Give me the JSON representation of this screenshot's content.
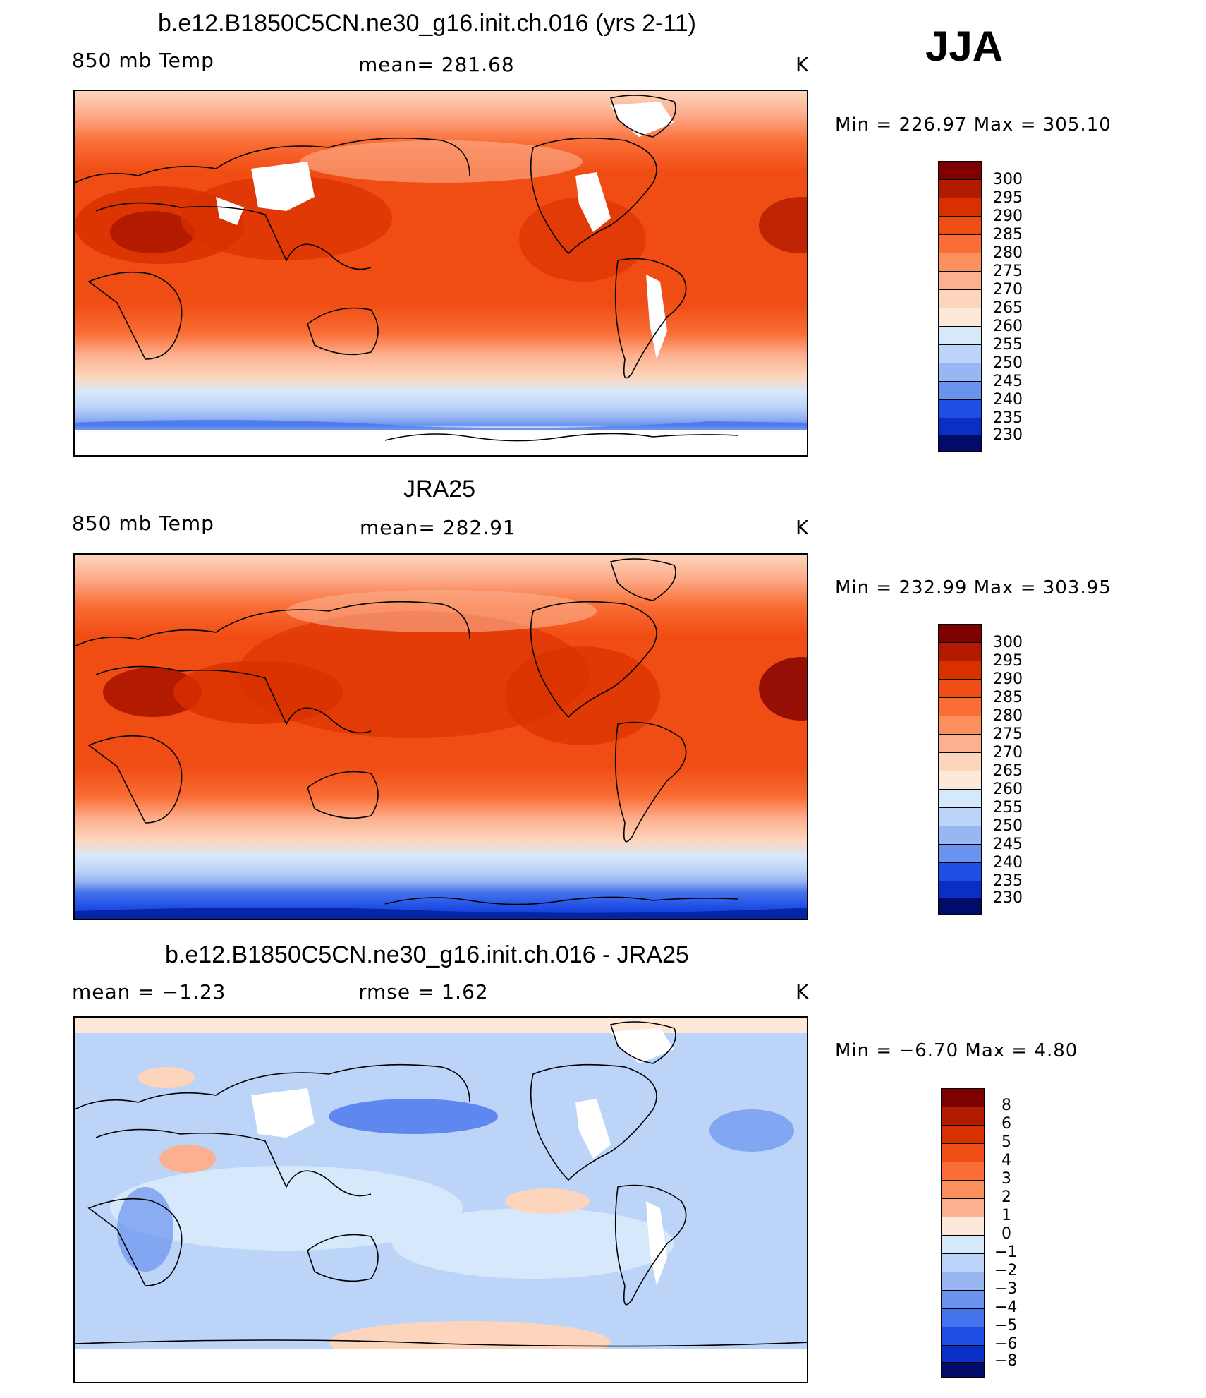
{
  "season": "JJA",
  "panels": [
    {
      "title": "b.e12.B1850C5CN.ne30_g16.init.ch.016 (yrs 2-11)",
      "left_label": "850 mb Temp",
      "center_label": "mean=  281.68",
      "units": "K",
      "minmax": "Min  =  226.97  Max  =  305.10",
      "colorbar_labels": [
        "300",
        "295",
        "290",
        "285",
        "280",
        "275",
        "270",
        "265",
        "260",
        "255",
        "250",
        "245",
        "240",
        "235",
        "230"
      ]
    },
    {
      "title": "JRA25",
      "left_label": "850 mb Temp",
      "center_label": "mean=  282.91",
      "units": "K",
      "minmax": "Min  =  232.99  Max  =  303.95",
      "colorbar_labels": [
        "300",
        "295",
        "290",
        "285",
        "280",
        "275",
        "270",
        "265",
        "260",
        "255",
        "250",
        "245",
        "240",
        "235",
        "230"
      ]
    },
    {
      "title": "b.e12.B1850C5CN.ne30_g16.init.ch.016 - JRA25",
      "left_label": "mean  =    −1.23",
      "center_label": "rmse  =     1.62",
      "units": "K",
      "minmax": "Min  =    −6.70  Max  =     4.80",
      "colorbar_labels": [
        "8",
        "6",
        "5",
        "4",
        "3",
        "2",
        "1",
        "0",
        "−1",
        "−2",
        "−3",
        "−4",
        "−5",
        "−6",
        "−8"
      ]
    }
  ],
  "colors": {
    "temp_scale": [
      "#7f0000",
      "#b31b00",
      "#d93000",
      "#f04d14",
      "#fa6d36",
      "#fc8f5e",
      "#fcb08f",
      "#fdd5bd",
      "#fde9da",
      "#d6e8fb",
      "#bcd4f7",
      "#97b6f2",
      "#6a93ee",
      "#4674ec",
      "#1f4ee6",
      "#0a2fc5",
      "#041e96",
      "#010c6a"
    ],
    "diff_scale": [
      "#7f0000",
      "#b31b00",
      "#d93000",
      "#f04d14",
      "#fa6d36",
      "#fc8f5e",
      "#fcb08f",
      "#fdd5bd",
      "#fde9da",
      "#d6e8fb",
      "#bcd4f7",
      "#97b6f2",
      "#6a93ee",
      "#4674ec",
      "#1f4ee6",
      "#0a2fc5",
      "#041e96",
      "#010c6a"
    ]
  }
}
